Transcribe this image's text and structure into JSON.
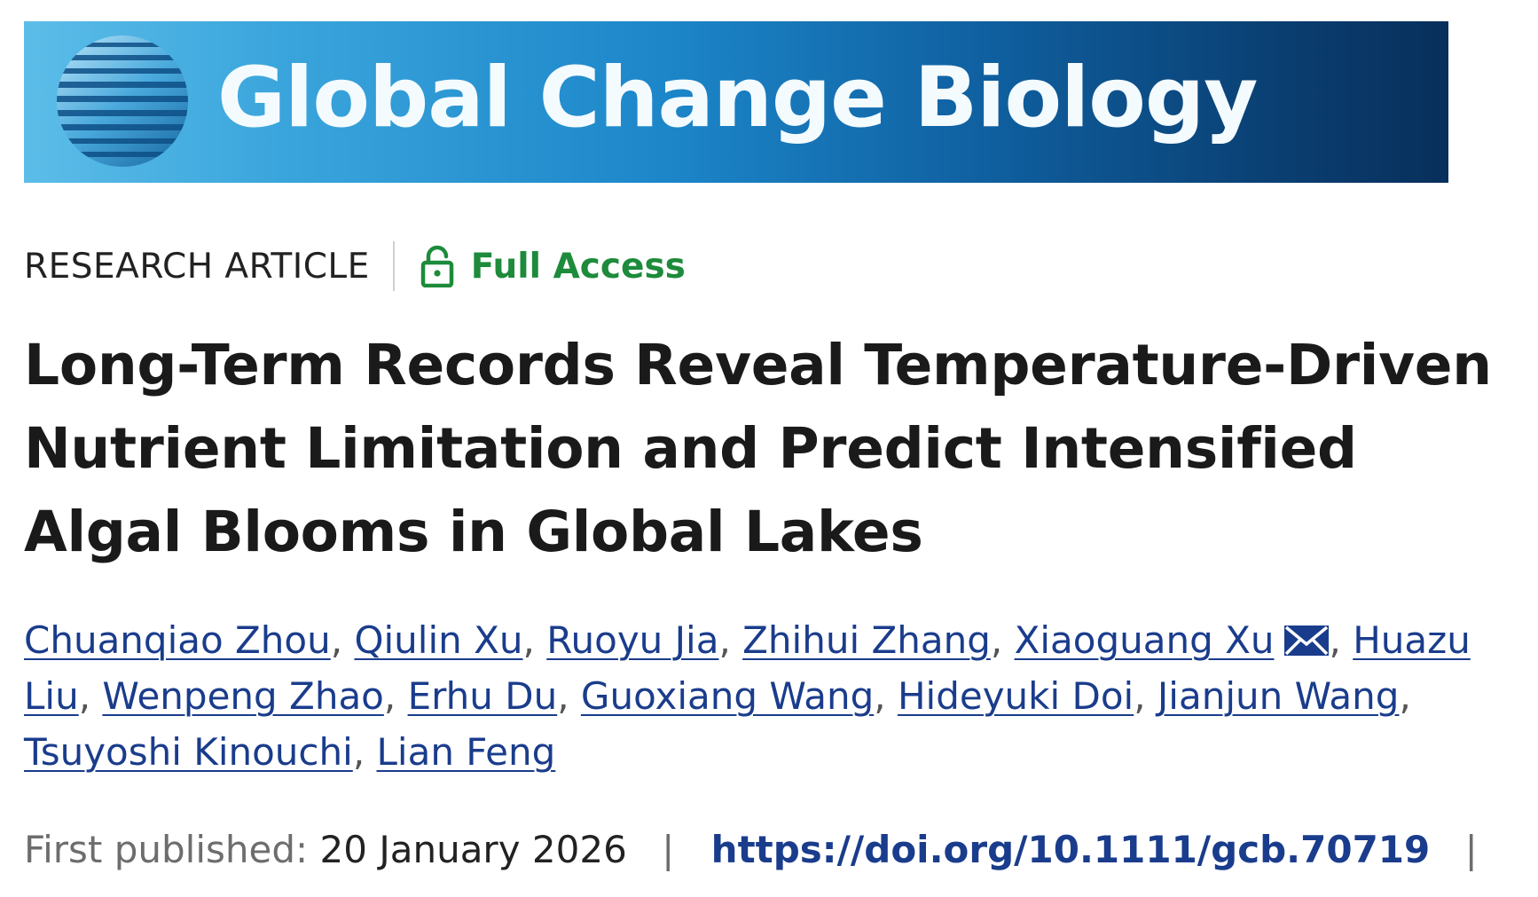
{
  "journal": {
    "name": "Global Change Biology",
    "logo_icon": "striped-globe-icon"
  },
  "colors": {
    "banner_start": "#5cbde8",
    "banner_end": "#082f5b",
    "access_green": "#1d8b3b",
    "link_blue": "#1a3c8c"
  },
  "article": {
    "type": "RESEARCH ARTICLE",
    "access_icon": "open-lock-icon",
    "access": "Full Access",
    "title": "Long-Term Records Reveal Temperature-Driven Nutrient Limitation and Predict Intensified Algal Blooms in Global Lakes"
  },
  "authors": [
    {
      "name": "Chuanqiao Zhou"
    },
    {
      "name": "Qiulin Xu"
    },
    {
      "name": "Ruoyu Jia"
    },
    {
      "name": "Zhihui Zhang"
    },
    {
      "name": "Xiaoguang Xu",
      "corresponding": true,
      "icon": "envelope-icon"
    },
    {
      "name": "Huazu Liu"
    },
    {
      "name": "Wenpeng Zhao"
    },
    {
      "name": "Erhu Du"
    },
    {
      "name": "Guoxiang Wang"
    },
    {
      "name": "Hideyuki Doi"
    },
    {
      "name": "Jianjun Wang"
    },
    {
      "name": "Tsuyoshi Kinouchi"
    },
    {
      "name": "Lian Feng"
    }
  ],
  "publication": {
    "label": "First published:",
    "date": "20 January 2026",
    "separator": "|",
    "doi": "https://doi.org/10.1111/gcb.70719"
  }
}
